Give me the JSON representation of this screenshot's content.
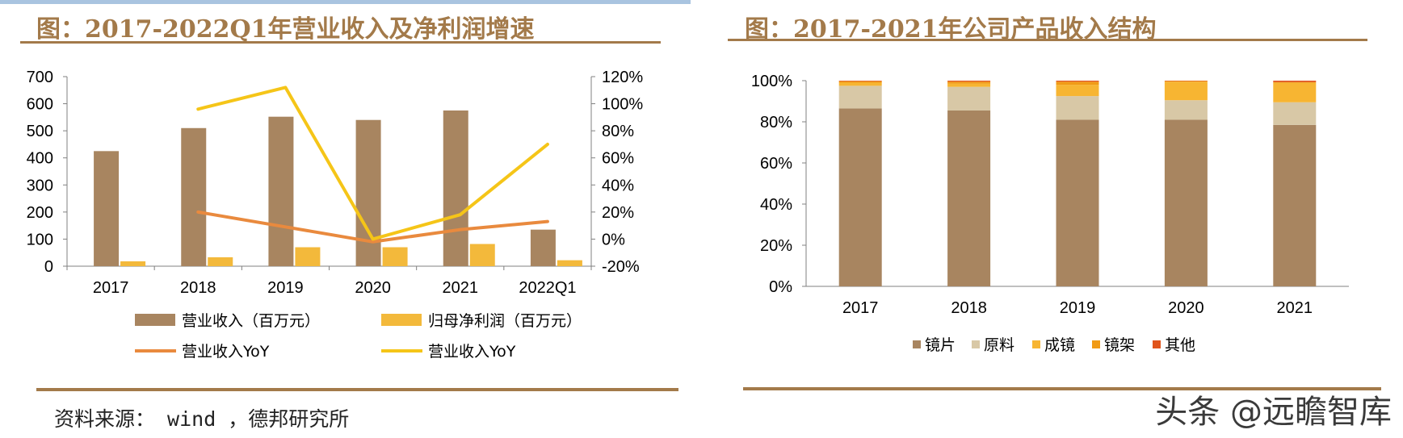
{
  "colors": {
    "brown": "#a88560",
    "gold": "#f3b93b",
    "orange_line": "#e98a3e",
    "yellow_line": "#f5c518",
    "tan": "#d8c8a6",
    "amber": "#f7b532",
    "orange": "#f19b16",
    "red_orange": "#e0541c",
    "title": "#a37a4a"
  },
  "left": {
    "title": "图：2017-2022Q1年营业收入及净利润增速"
  },
  "right": {
    "title": "图：2017-2021年公司产品收入结构"
  },
  "source": "资料来源： wind ，德邦研究所",
  "watermark": "头条 @远瞻智库",
  "chart_data": [
    {
      "type": "bar",
      "categories": [
        "2017",
        "2018",
        "2019",
        "2020",
        "2021",
        "2022Q1"
      ],
      "series": [
        {
          "name": "营业收入（百万元）",
          "kind": "bar",
          "axis": "left",
          "color": "#a88560",
          "values": [
            425,
            510,
            552,
            540,
            575,
            135
          ]
        },
        {
          "name": "归母净利润（百万元）",
          "kind": "bar",
          "axis": "left",
          "color": "#f3b93b",
          "values": [
            18,
            33,
            70,
            70,
            82,
            22
          ]
        },
        {
          "name": "营业收入YoY",
          "kind": "line",
          "axis": "right",
          "color": "#e98a3e",
          "values": [
            null,
            20,
            9,
            -2,
            7,
            13
          ]
        },
        {
          "name": "营业收入YoY",
          "kind": "line",
          "axis": "right",
          "color": "#f5c518",
          "values": [
            null,
            96,
            112,
            0,
            18,
            70
          ]
        }
      ],
      "ylim": [
        0,
        700
      ],
      "yticks": [
        0,
        100,
        200,
        300,
        400,
        500,
        600,
        700
      ],
      "y2lim": [
        -20,
        120
      ],
      "y2ticks": [
        "-20%",
        "0%",
        "20%",
        "40%",
        "60%",
        "80%",
        "100%",
        "120%"
      ],
      "legend_position": "bottom"
    },
    {
      "type": "bar",
      "stacked": true,
      "categories": [
        "2017",
        "2018",
        "2019",
        "2020",
        "2021"
      ],
      "series": [
        {
          "name": "镜片",
          "color": "#a88560",
          "values": [
            86.5,
            85.5,
            81,
            81,
            78.5
          ]
        },
        {
          "name": "原料",
          "color": "#d8c8a6",
          "values": [
            11,
            11.5,
            11.5,
            9.5,
            11
          ]
        },
        {
          "name": "成镜",
          "color": "#f7b532",
          "values": [
            1.5,
            1.5,
            5.5,
            9,
            9.5
          ]
        },
        {
          "name": "镜架",
          "color": "#f19b16",
          "values": [
            0.7,
            1.0,
            1.5,
            0.3,
            0.3
          ]
        },
        {
          "name": "其他",
          "color": "#e0541c",
          "values": [
            0.3,
            0.5,
            0.5,
            0.2,
            0.7
          ]
        }
      ],
      "ylim": [
        0,
        100
      ],
      "yticks": [
        "0%",
        "20%",
        "40%",
        "60%",
        "80%",
        "100%"
      ],
      "legend_position": "bottom"
    }
  ]
}
